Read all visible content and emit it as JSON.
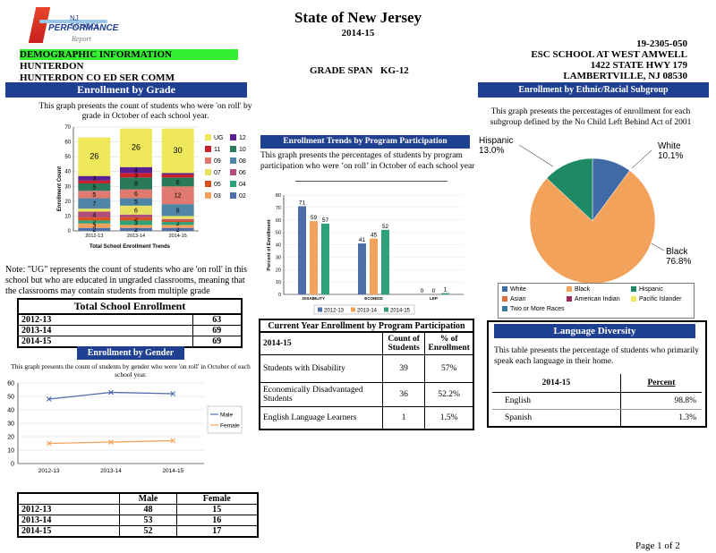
{
  "header": {
    "logo_line1": "NJ SCHOOL",
    "logo_line2": "PERFORMANCE",
    "logo_line3": "Report",
    "title": "State of New Jersey",
    "year": "2014-15",
    "school_code": "19-2305-050",
    "school_name": "ESC SCHOOL AT WEST AMWELL",
    "address1": "1422 STATE HWY  179",
    "address2": "LAMBERTVILLE, NJ 08530",
    "demo_label": "DEMOGRAPHIC INFORMATION",
    "county": "HUNTERDON",
    "district": "HUNTERDON CO ED SER COMM",
    "grade_span_label": "GRADE SPAN",
    "grade_span_value": "KG-12",
    "colors": {
      "demo_bar": "#33ee33",
      "section_bar": "#1f3f91"
    }
  },
  "enrollment_by_grade": {
    "title": "Enrollment by Grade",
    "description": "This graph presents the count of students who were 'on roll' by grade in October of each school year.",
    "chart_data": {
      "type": "bar",
      "stacked": true,
      "xlabel": "Total School Enrollment Trends",
      "ylabel": "Enrollment Count",
      "ylim": [
        0,
        70
      ],
      "yticks": [
        0,
        10,
        20,
        30,
        40,
        50,
        60,
        70
      ],
      "categories": [
        "2012-13",
        "2013-14",
        "2014-15"
      ],
      "series": [
        {
          "name": "02",
          "color": "#4f6da8",
          "values": [
            2,
            2,
            2
          ]
        },
        {
          "name": "03",
          "color": "#f2a25a",
          "values": [
            3,
            2,
            2
          ]
        },
        {
          "name": "04",
          "color": "#2ea07a",
          "values": [
            2,
            3,
            2
          ]
        },
        {
          "name": "05",
          "color": "#d9501a",
          "values": [
            2,
            2,
            1
          ]
        },
        {
          "name": "06",
          "color": "#b24c7a",
          "values": [
            4,
            2,
            1
          ]
        },
        {
          "name": "07",
          "color": "#e8e060",
          "values": [
            2,
            6,
            2
          ]
        },
        {
          "name": "08",
          "color": "#4f86a8",
          "values": [
            7,
            5,
            8
          ]
        },
        {
          "name": "09",
          "color": "#e07a70",
          "values": [
            5,
            6,
            12
          ]
        },
        {
          "name": "10",
          "color": "#2a7a5a",
          "values": [
            5,
            8,
            6
          ]
        },
        {
          "name": "11",
          "color": "#c8202a",
          "values": [
            2,
            3,
            2
          ]
        },
        {
          "name": "12",
          "color": "#5a2090",
          "values": [
            3,
            4,
            1
          ]
        },
        {
          "name": "UG",
          "color": "#eee85a",
          "values": [
            26,
            26,
            30
          ]
        }
      ],
      "labels": [
        [
          "2",
          "3",
          "2",
          "",
          "4",
          "",
          "7",
          "5",
          "5",
          "",
          "3",
          "26"
        ],
        [
          "2",
          "",
          "3",
          "2",
          "",
          "6",
          "5",
          "6",
          "8",
          "3",
          "4",
          "26"
        ],
        [
          "2",
          "",
          "2",
          "",
          "",
          "",
          "8",
          "12",
          "6",
          "",
          "",
          "30"
        ]
      ],
      "legend": [
        [
          "UG",
          "12"
        ],
        [
          "11",
          "10"
        ],
        [
          "09",
          "08"
        ],
        [
          "07",
          "06"
        ],
        [
          "05",
          "04"
        ],
        [
          "03",
          "02"
        ]
      ]
    },
    "note": "Note: \"UG\" represents the count of students who are 'on roll' in this school but who are educated in ungraded classrooms, meaning that the classrooms may contain students from multiple grade"
  },
  "total_enrollment": {
    "title": "Total School Enrollment",
    "rows": [
      {
        "year": "2012-13",
        "value": "63"
      },
      {
        "year": "2013-14",
        "value": "69"
      },
      {
        "year": "2014-15",
        "value": "69"
      }
    ]
  },
  "enrollment_by_gender": {
    "title": "Enrollment by Gender",
    "description": "This graph presents the count of students by gender who were 'on roll' in October of each school year.",
    "chart_data": {
      "type": "line",
      "ylim": [
        0,
        60
      ],
      "yticks": [
        0,
        10,
        20,
        30,
        40,
        50,
        60
      ],
      "categories": [
        "2012-13",
        "2013-14",
        "2014-15"
      ],
      "series": [
        {
          "name": "Male",
          "color": "#4f6da8",
          "values": [
            48,
            53,
            52
          ]
        },
        {
          "name": "Female",
          "color": "#f2a25a",
          "values": [
            15,
            16,
            17
          ]
        }
      ]
    },
    "table": {
      "headers": [
        "",
        "Male",
        "Female"
      ],
      "rows": [
        [
          "2012-13",
          "48",
          "15"
        ],
        [
          "2013-14",
          "53",
          "16"
        ],
        [
          "2014-15",
          "52",
          "17"
        ]
      ]
    }
  },
  "program_trends": {
    "title": "Enrollment Trends by Program Participation",
    "description": "This graph presents the percentages of students by program participation who were ’on roll’ in October of each school year",
    "chart_data": {
      "type": "bar",
      "ylabel": "Percent of Enrollment",
      "ylim": [
        0,
        80
      ],
      "yticks": [
        0,
        10,
        20,
        30,
        40,
        50,
        60,
        70,
        80
      ],
      "categories": [
        "DISABILITY",
        "ECONDIS",
        "LEP"
      ],
      "series": [
        {
          "name": "2012-13",
          "color": "#4f6da8",
          "values": [
            71,
            41,
            0
          ]
        },
        {
          "name": "2013-14",
          "color": "#f2a25a",
          "values": [
            59,
            45,
            0
          ]
        },
        {
          "name": "2014-15",
          "color": "#2ea07a",
          "values": [
            57,
            52,
            1
          ]
        }
      ]
    }
  },
  "current_program": {
    "title": "Current Year Enrollment by Program Participation",
    "headers": [
      "2014-15",
      "Count of Students",
      "% of Enrollment"
    ],
    "rows": [
      [
        "Students with Disability",
        "39",
        "57%"
      ],
      [
        "Economically Disadvantaged Students",
        "36",
        "52.2%"
      ],
      [
        "English Language Learners",
        "1",
        "1.5%"
      ]
    ]
  },
  "ethnic": {
    "title": "Enrollment by Ethnic/Racial Subgroup",
    "description": "This graph presents the percentages of enrollment for each subgroup defined by the No Child Left Behind Act of 2001",
    "chart_data": {
      "type": "pie",
      "slices": [
        {
          "name": "White",
          "value": 10.1,
          "label": "10.1%",
          "color": "#3f6aa5"
        },
        {
          "name": "Black",
          "value": 76.8,
          "label": "76.8%",
          "color": "#f2a25a"
        },
        {
          "name": "Hispanic",
          "value": 13.0,
          "label": "13.0%",
          "color": "#1e8a65"
        }
      ],
      "legend": [
        "White",
        "Black",
        "Hispanic",
        "Asian",
        "American Indian",
        "Pacific Islander",
        "Two or More Races"
      ],
      "legend_colors": [
        "#3f6aa5",
        "#f2a25a",
        "#1e8a65",
        "#e06a3a",
        "#9a2a5a",
        "#eee85a",
        "#3a7aa0"
      ]
    }
  },
  "language": {
    "title": "Language Diversity",
    "description": "This table presents the percentage of students who primarily speak each language in their home.",
    "headers": [
      "2014-15",
      "Percent"
    ],
    "rows": [
      [
        "English",
        "98.8%"
      ],
      [
        "Spanish",
        "1.3%"
      ]
    ]
  },
  "footer": {
    "page": "Page 1 of 2"
  }
}
